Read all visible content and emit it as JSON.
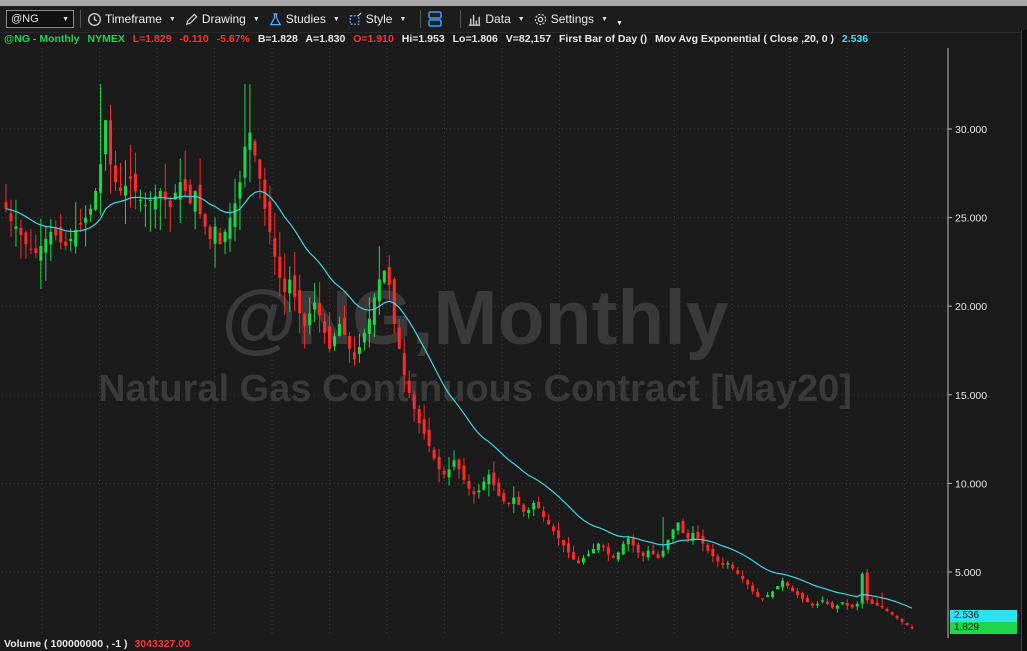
{
  "toolbar": {
    "symbol": "@NG",
    "timeframe_label": "Timeframe",
    "drawing_label": "Drawing",
    "studies_label": "Studies",
    "style_label": "Style",
    "data_label": "Data",
    "settings_label": "Settings"
  },
  "infobar": {
    "title": "@NG - Monthly",
    "exchange": "NYMEX",
    "last": "L=1.829",
    "change": "-0.110",
    "change_pct": "-5.67%",
    "bid": "B=1.828",
    "ask": "A=1.830",
    "open": "O=1.910",
    "high": "Hi=1.953",
    "low": "Lo=1.806",
    "volume": "V=82,157",
    "first_bar": "First Bar of Day ()",
    "study": "Mov Avg Exponential ( Close ,20, 0 )",
    "study_value": "2.536"
  },
  "watermark": {
    "line1": "@NG,Monthly",
    "line2": "Natural Gas Continuous Contract [May20]"
  },
  "volume_bar": {
    "label": "Volume ( 100000000 , -1 )",
    "value": "3043327.00"
  },
  "price_tags": {
    "ema": "2.536",
    "last": "1.829"
  },
  "colors": {
    "up": "#19d84c",
    "down": "#ff2a2a",
    "ema": "#3fd6e6",
    "background": "#1b1b1b",
    "grid": "#3c3c3c"
  },
  "chart_data": {
    "type": "candlestick",
    "y_ticks": [
      "30.000",
      "25.000",
      "20.000",
      "15.000",
      "10.000",
      "5.000"
    ],
    "ylim": [
      0.5,
      34.5
    ],
    "ema_period": 20,
    "series": [
      {
        "name": "Mov Avg Exponential ( Close ,20, 0 )",
        "type": "line"
      }
    ],
    "close": [
      25.5,
      24.8,
      24.5,
      24.0,
      23.5,
      23.2,
      23.0,
      23.4,
      23.8,
      24.2,
      24.0,
      23.6,
      23.4,
      23.8,
      24.3,
      24.6,
      25.0,
      25.5,
      26.5,
      28.0,
      30.5,
      28.0,
      27.0,
      26.5,
      26.8,
      27.2,
      26.5,
      26.0,
      25.7,
      26.0,
      26.2,
      26.5,
      26.0,
      25.6,
      26.4,
      27.0,
      26.5,
      25.8,
      26.5,
      25.2,
      24.5,
      23.8,
      24.5,
      23.5,
      24.2,
      25.0,
      25.8,
      27.0,
      29.0,
      29.8,
      28.5,
      27.2,
      25.5,
      24.2,
      22.8,
      21.6,
      20.8,
      21.5,
      20.5,
      19.6,
      18.9,
      19.6,
      20.2,
      19.5,
      18.5,
      17.6,
      18.3,
      19.0,
      18.4,
      17.6,
      17.0,
      17.7,
      18.5,
      19.3,
      20.5,
      21.5,
      22.0,
      21.2,
      19.0,
      17.6,
      16.1,
      15.1,
      14.2,
      13.4,
      12.8,
      12.1,
      11.4,
      10.8,
      10.5,
      10.8,
      11.3,
      10.8,
      10.2,
      9.7,
      9.4,
      9.6,
      10.1,
      10.5,
      9.9,
      9.3,
      9.0,
      8.9,
      9.2,
      8.8,
      8.4,
      8.5,
      8.9,
      8.6,
      8.1,
      7.7,
      7.3,
      6.9,
      6.5,
      6.1,
      5.7,
      5.5,
      5.8,
      6.0,
      6.3,
      6.6,
      6.4,
      6.0,
      5.8,
      6.1,
      6.6,
      6.9,
      6.5,
      6.1,
      5.9,
      6.2,
      6.0,
      5.8,
      6.2,
      6.8,
      7.4,
      7.8,
      7.2,
      6.9,
      7.2,
      6.9,
      6.6,
      6.2,
      5.9,
      5.6,
      5.4,
      5.5,
      5.2,
      4.9,
      4.6,
      4.3,
      3.9,
      3.6,
      3.5,
      3.7,
      3.9,
      4.2,
      4.5,
      4.2,
      3.9,
      3.7,
      3.5,
      3.3,
      3.1,
      3.2,
      3.4,
      3.2,
      3.0,
      3.1,
      3.3,
      3.1,
      3.0,
      3.2,
      4.9,
      3.4,
      3.2,
      3.1,
      3.0,
      2.8,
      2.6,
      2.4,
      2.2,
      2.0,
      1.829
    ]
  }
}
